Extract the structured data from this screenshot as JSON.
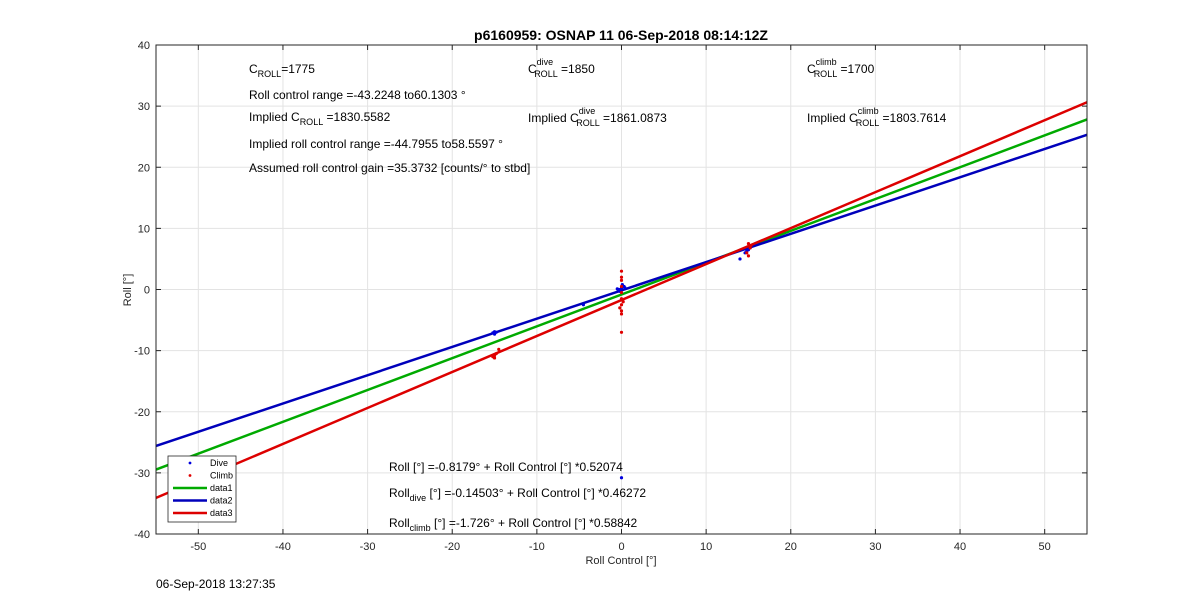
{
  "chart_data": {
    "type": "scatter",
    "title": "p6160959: OSNAP 11 06-Sep-2018 08:14:12Z",
    "xlabel": "Roll Control [°]",
    "ylabel": "Roll [°]",
    "xlim": [
      -55,
      55
    ],
    "ylim": [
      -40,
      40
    ],
    "xticks": [
      -50,
      -40,
      -30,
      -20,
      -10,
      0,
      10,
      20,
      30,
      40,
      50
    ],
    "yticks": [
      -40,
      -30,
      -20,
      -10,
      0,
      10,
      20,
      30,
      40
    ],
    "grid": true,
    "legend_position": "bottom-left",
    "series": [
      {
        "name": "Dive",
        "kind": "points",
        "color": "#0000dd",
        "points": [
          [
            -15,
            -6.9
          ],
          [
            -15.2,
            -7.1
          ],
          [
            -14.8,
            -7.0
          ],
          [
            -15.0,
            -7.3
          ],
          [
            -4.5,
            -2.5
          ],
          [
            -0.5,
            0.1
          ],
          [
            0,
            0.2
          ],
          [
            0.3,
            0.5
          ],
          [
            -0.2,
            -0.3
          ],
          [
            0.1,
            0.8
          ],
          [
            0.4,
            0.3
          ],
          [
            -0.3,
            0.0
          ],
          [
            0,
            -30.8
          ],
          [
            14,
            5.0
          ],
          [
            14.6,
            6.0
          ],
          [
            15.0,
            6.5
          ],
          [
            15.2,
            6.8
          ],
          [
            14.8,
            6.3
          ]
        ]
      },
      {
        "name": "Climb",
        "kind": "points",
        "color": "#e00000",
        "points": [
          [
            -15,
            -10.8
          ],
          [
            -15.2,
            -11.0
          ],
          [
            -14.8,
            -10.5
          ],
          [
            -15.0,
            -11.2
          ],
          [
            -14.5,
            -9.8
          ],
          [
            0,
            3.0
          ],
          [
            0,
            2.0
          ],
          [
            0,
            1.5
          ],
          [
            0,
            0.5
          ],
          [
            0,
            -0.5
          ],
          [
            0,
            -1.5
          ],
          [
            0,
            -2.5
          ],
          [
            0,
            -3.5
          ],
          [
            0,
            -4.0
          ],
          [
            0,
            -7.0
          ],
          [
            0.2,
            -2.0
          ],
          [
            -0.2,
            -3.0
          ],
          [
            15,
            7.5
          ],
          [
            15.2,
            6.8
          ],
          [
            14.8,
            6.0
          ],
          [
            15.0,
            5.5
          ],
          [
            15.3,
            7.2
          ]
        ]
      },
      {
        "name": "data1",
        "kind": "line",
        "color": "#00aa00",
        "x": [
          -55,
          55
        ],
        "y": [
          -29.46,
          27.82
        ]
      },
      {
        "name": "data2",
        "kind": "line",
        "color": "#0000bb",
        "x": [
          -55,
          55
        ],
        "y": [
          -25.59,
          25.3
        ]
      },
      {
        "name": "data3",
        "kind": "line",
        "color": "#dd0000",
        "x": [
          -55,
          55
        ],
        "y": [
          -34.09,
          30.64
        ]
      }
    ]
  },
  "annotations": {
    "c_roll": {
      "main": "C",
      "sub": "ROLL",
      "value": "=1775"
    },
    "roll_control_range": "Roll control range =-43.2248 to60.1303 °",
    "implied_c_roll": {
      "prefix": "Implied C",
      "sub": "ROLL",
      "value": " =1830.5582"
    },
    "implied_roll_control_range": "Implied roll control range =-44.7955 to58.5597 °",
    "assumed_gain": "Assumed roll control gain =35.3732 [counts/° to stbd]",
    "c_roll_dive": {
      "main": "C",
      "sup": "dive",
      "sub": "ROLL",
      "value": " =1850"
    },
    "implied_c_roll_dive": {
      "prefix": "Implied C",
      "sup": "dive",
      "sub": "ROLL",
      "value": " =1861.0873"
    },
    "c_roll_climb": {
      "main": "C",
      "sup": "climb",
      "sub": "ROLL",
      "value": " =1700"
    },
    "implied_c_roll_climb": {
      "prefix": "Implied C",
      "sup": "climb",
      "sub": "ROLL",
      "value": " =1803.7614"
    },
    "eq_all": "Roll [°] =-0.8179° + Roll Control [°] *0.52074",
    "eq_dive": {
      "main": "Roll",
      "sub": "dive",
      "rest": " [°] =-0.14503° + Roll Control [°] *0.46272"
    },
    "eq_climb": {
      "main": "Roll",
      "sub": "climb",
      "rest": " [°] =-1.726° + Roll Control [°] *0.58842"
    }
  },
  "footer": {
    "timestamp": "06-Sep-2018 13:27:35"
  }
}
